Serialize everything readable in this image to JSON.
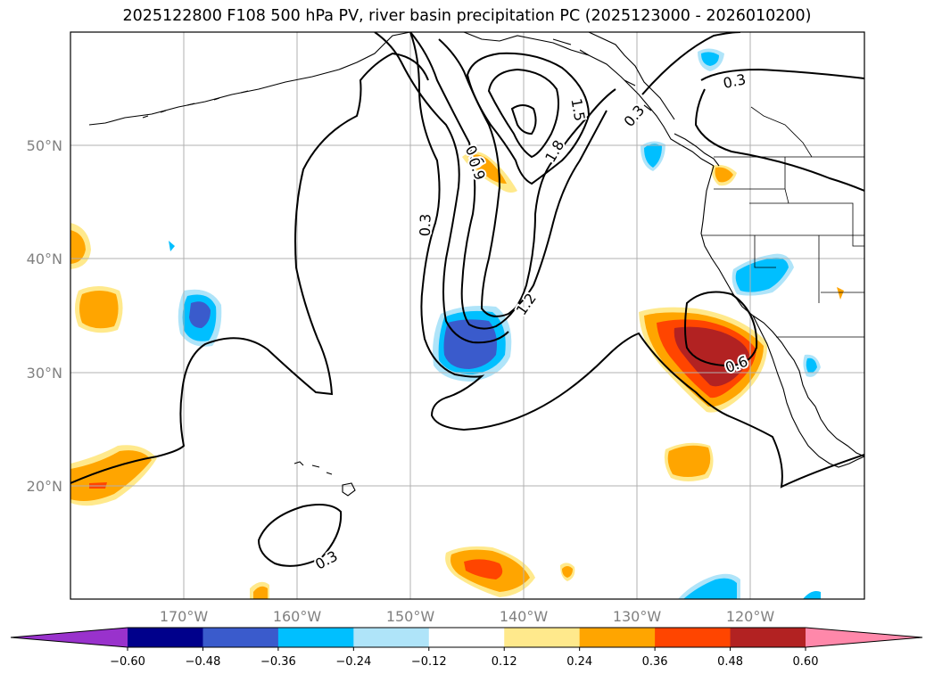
{
  "title": "2025122800 F108 500 hPa PV, river basin precipitation PC (2025123000 - 2026010200)",
  "map": {
    "lon_labels": [
      "170°W",
      "160°W",
      "150°W",
      "140°W",
      "130°W",
      "120°W"
    ],
    "lat_labels": [
      "50°N",
      "40°N",
      "30°N",
      "20°N"
    ],
    "contour_labels": [
      "0.3",
      "0.3",
      "0.6",
      "0.9",
      "1.2",
      "1.5",
      "1.8",
      "0.3",
      "0.6",
      "0.3"
    ]
  },
  "colorbar": {
    "ticks": [
      "−0.60",
      "−0.48",
      "−0.36",
      "−0.24",
      "−0.12",
      "0.12",
      "0.24",
      "0.36",
      "0.48",
      "0.60"
    ],
    "colors": [
      "#9932cc",
      "#00008b",
      "#3a5bcc",
      "#00bfff",
      "#afe4f9",
      "#ffffff",
      "#ffe98c",
      "#ffa500",
      "#ff4500",
      "#b22222",
      "#ff88aa"
    ]
  }
}
